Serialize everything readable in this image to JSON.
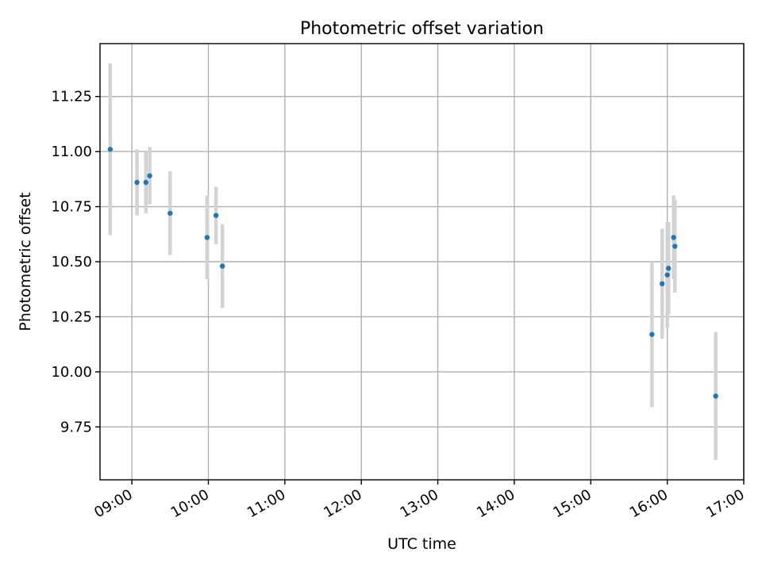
{
  "chart_data": {
    "type": "scatter",
    "title": "Photometric offset variation",
    "xlabel": "UTC time",
    "ylabel": "Photometric offset",
    "x_tick_labels": [
      "09:00",
      "10:00",
      "11:00",
      "12:00",
      "13:00",
      "14:00",
      "15:00",
      "16:00",
      "17:00"
    ],
    "y_ticks": [
      9.75,
      10.0,
      10.25,
      10.5,
      10.75,
      11.0,
      11.25
    ],
    "y_tick_labels": [
      "9.75",
      "10.00",
      "10.25",
      "10.50",
      "10.75",
      "11.00",
      "11.25"
    ],
    "xlim": [
      "08:35",
      "17:00"
    ],
    "ylim": [
      9.51,
      11.49
    ],
    "grid": true,
    "marker_color": "#1f77b4",
    "errorbar_color": "#d3d3d3",
    "series": [
      {
        "points": [
          {
            "x": "08:43",
            "y": 11.01,
            "err": 0.39
          },
          {
            "x": "09:04",
            "y": 10.86,
            "err": 0.15
          },
          {
            "x": "09:11",
            "y": 10.86,
            "err": 0.14
          },
          {
            "x": "09:14",
            "y": 10.89,
            "err": 0.13
          },
          {
            "x": "09:30",
            "y": 10.72,
            "err": 0.19
          },
          {
            "x": "09:59",
            "y": 10.61,
            "err": 0.19
          },
          {
            "x": "10:06",
            "y": 10.71,
            "err": 0.13
          },
          {
            "x": "10:11",
            "y": 10.48,
            "err": 0.19
          },
          {
            "x": "15:48",
            "y": 10.17,
            "err": 0.33
          },
          {
            "x": "15:56",
            "y": 10.4,
            "err": 0.25
          },
          {
            "x": "16:00",
            "y": 10.44,
            "err": 0.24
          },
          {
            "x": "16:01",
            "y": 10.47,
            "err": 0.21
          },
          {
            "x": "16:05",
            "y": 10.61,
            "err": 0.19
          },
          {
            "x": "16:06",
            "y": 10.57,
            "err": 0.21
          },
          {
            "x": "16:38",
            "y": 9.89,
            "err": 0.29
          }
        ]
      }
    ]
  }
}
